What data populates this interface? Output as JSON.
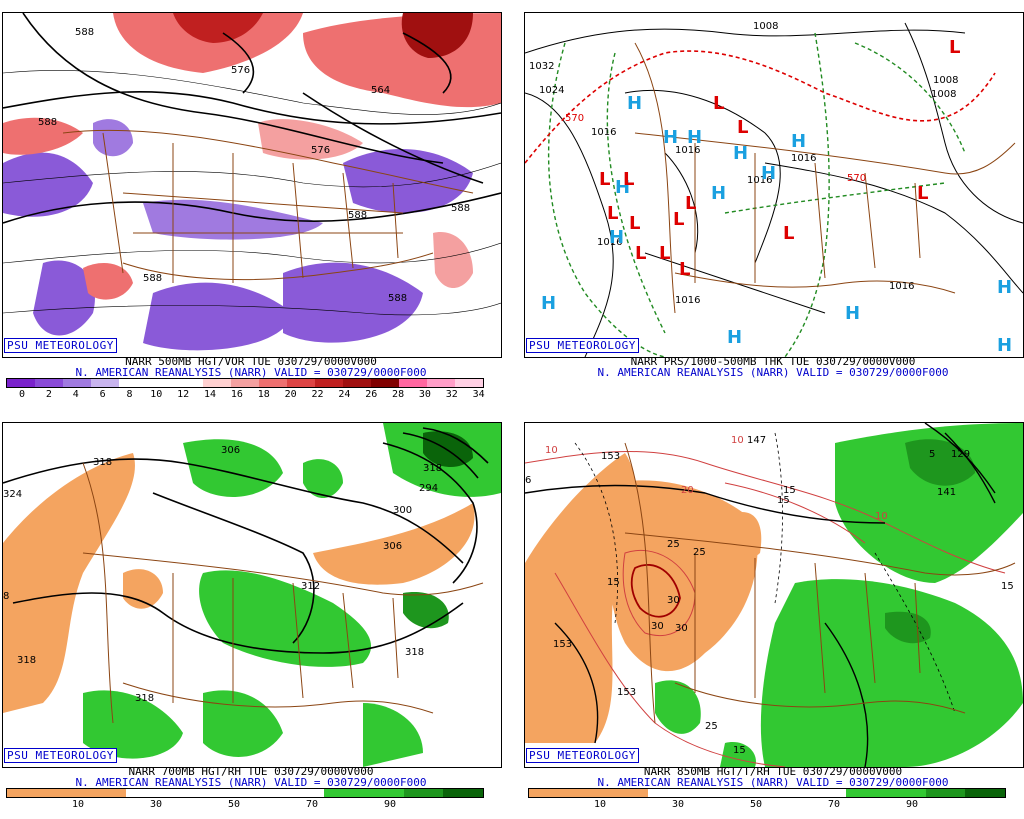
{
  "panels": {
    "top_left": {
      "badge": "PSU METEOROLOGY",
      "caption1": "NARR 500MB HGT/VOR TUE 030729/0000V000",
      "caption2": "N. AMERICAN REANALYSIS (NARR) VALID = 030729/0000F000",
      "colorbar_colors": [
        "#7a22cc",
        "#8a4ad8",
        "#a07ae0",
        "#c8b4ee",
        "#ffffff",
        "#ffffff",
        "#ffffff",
        "#ffd0d0",
        "#f4a0a0",
        "#ee7070",
        "#dd4444",
        "#c02020",
        "#a01010",
        "#800000",
        "#ff66a0",
        "#ff9ec8",
        "#ffd0e4"
      ],
      "colorbar_ticks": [
        "0",
        "2",
        "4",
        "6",
        "8",
        "10",
        "12",
        "14",
        "16",
        "18",
        "20",
        "22",
        "24",
        "26",
        "28",
        "30",
        "32",
        "34"
      ],
      "contour_labels": [
        "588",
        "576",
        "564",
        "588",
        "588",
        "588",
        "588",
        "588",
        "576"
      ]
    },
    "top_right": {
      "badge": "PSU METEOROLOGY",
      "caption1": "NARR PRS/1000-500MB THK TUE 030729/0000V000",
      "caption2": "N. AMERICAN REANALYSIS (NARR) VALID = 030729/0000F000",
      "contour_labels": [
        "1032",
        "1024",
        "1016",
        "1016",
        "1016",
        "1016",
        "1016",
        "1008",
        "1008",
        "1008",
        "1016",
        "1016",
        "570",
        "570"
      ],
      "high_symbol": "H",
      "low_symbol": "L"
    },
    "bottom_left": {
      "badge": "PSU METEOROLOGY",
      "caption1": "NARR 700MB HGT/RH TUE 030729/0000V000",
      "caption2": "N. AMERICAN REANALYSIS (NARR) VALID = 030729/0000F000",
      "colorbar_colors": [
        "#f4a460",
        "#f4a460",
        "#f4a460",
        "#ffffff",
        "#ffffff",
        "#ffffff",
        "#ffffff",
        "#ffffff",
        "#32c832",
        "#32c832",
        "#1e961e",
        "#0a640a"
      ],
      "colorbar_ticks": [
        "10",
        "30",
        "50",
        "70",
        "90"
      ],
      "contour_labels": [
        "318",
        "324",
        "306",
        "318",
        "306",
        "300",
        "294",
        "312",
        "318",
        "318",
        "318",
        "8"
      ]
    },
    "bottom_right": {
      "badge": "PSU METEOROLOGY",
      "caption1": "NARR 850MB HGT/T/RH TUE 030729/0000V000",
      "caption2": "N. AMERICAN REANALYSIS (NARR) VALID = 030729/0000F000",
      "colorbar_colors": [
        "#f4a460",
        "#f4a460",
        "#f4a460",
        "#ffffff",
        "#ffffff",
        "#ffffff",
        "#ffffff",
        "#ffffff",
        "#32c832",
        "#32c832",
        "#1e961e",
        "#0a640a"
      ],
      "colorbar_ticks": [
        "10",
        "30",
        "50",
        "70",
        "90"
      ],
      "contour_labels": [
        "153",
        "147",
        "10",
        "10",
        "20",
        "15",
        "25",
        "25",
        "30",
        "30",
        "30",
        "15",
        "153",
        "15",
        "153",
        "25",
        "15",
        "10",
        "5",
        "129",
        "141",
        "15",
        "6"
      ]
    }
  }
}
